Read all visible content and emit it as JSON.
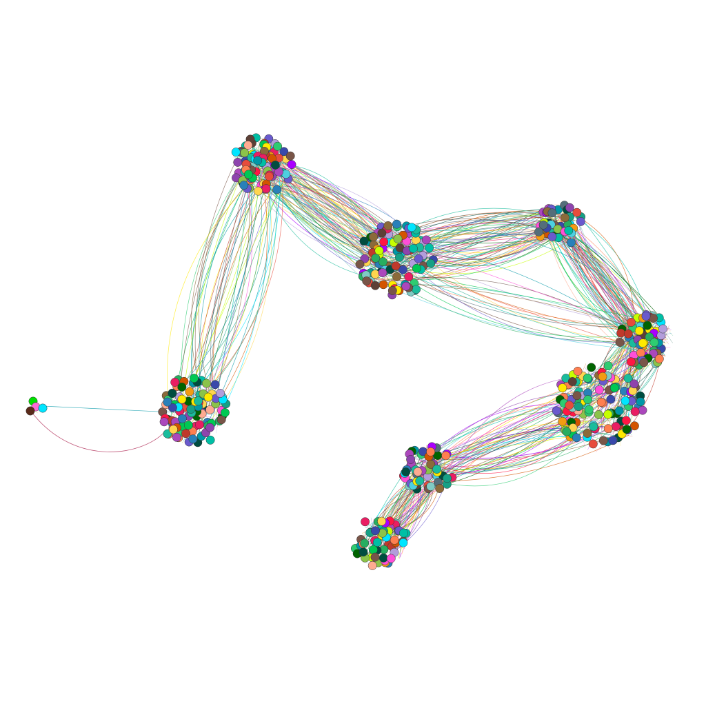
{
  "diagram": {
    "type": "network-graph",
    "layout": "force-directed",
    "background": "#ffffff",
    "node_stroke": "#333333",
    "edge_style": "curved",
    "palette": [
      "#00e5ff",
      "#ff4fd8",
      "#8b6a3a",
      "#2ecc71",
      "#e74c3c",
      "#f39c12",
      "#2980b9",
      "#8e44ad",
      "#16a085",
      "#c0392b",
      "#d35400",
      "#27ae60",
      "#1abc9c",
      "#ff7f50",
      "#6a5acd",
      "#006400",
      "#004d40",
      "#ffd54f",
      "#b39ddb",
      "#80cbc4",
      "#c6ff00",
      "#ff1744",
      "#3949ab",
      "#795548",
      "#00bfa5",
      "#aa00ff",
      "#ffab91",
      "#546e7a",
      "#0097a7",
      "#e91e63",
      "#00c853",
      "#ffea00",
      "#5d4037",
      "#ab47bc",
      "#4dd0e1",
      "#8bc34a"
    ],
    "clusters": [
      {
        "id": "cluster-a",
        "node_count": 85
      },
      {
        "id": "cluster-b",
        "node_count": 110
      },
      {
        "id": "cluster-c",
        "node_count": 45
      },
      {
        "id": "cluster-d",
        "node_count": 60
      },
      {
        "id": "cluster-e",
        "node_count": 120
      },
      {
        "id": "cluster-f",
        "node_count": 95
      },
      {
        "id": "cluster-g",
        "node_count": 50
      },
      {
        "id": "cluster-h",
        "node_count": 55
      },
      {
        "id": "cluster-i",
        "node_count": 3
      }
    ],
    "links": [
      {
        "from": "cluster-a",
        "to": "cluster-b",
        "count": 90
      },
      {
        "from": "cluster-a",
        "to": "cluster-f",
        "count": 40
      },
      {
        "from": "cluster-b",
        "to": "cluster-c",
        "count": 70
      },
      {
        "from": "cluster-c",
        "to": "cluster-d",
        "count": 70
      },
      {
        "from": "cluster-d",
        "to": "cluster-e",
        "count": 80
      },
      {
        "from": "cluster-b",
        "to": "cluster-d",
        "count": 20
      },
      {
        "from": "cluster-e",
        "to": "cluster-g",
        "count": 60
      },
      {
        "from": "cluster-g",
        "to": "cluster-h",
        "count": 60
      },
      {
        "from": "cluster-f",
        "to": "cluster-i",
        "count": 1
      }
    ]
  }
}
